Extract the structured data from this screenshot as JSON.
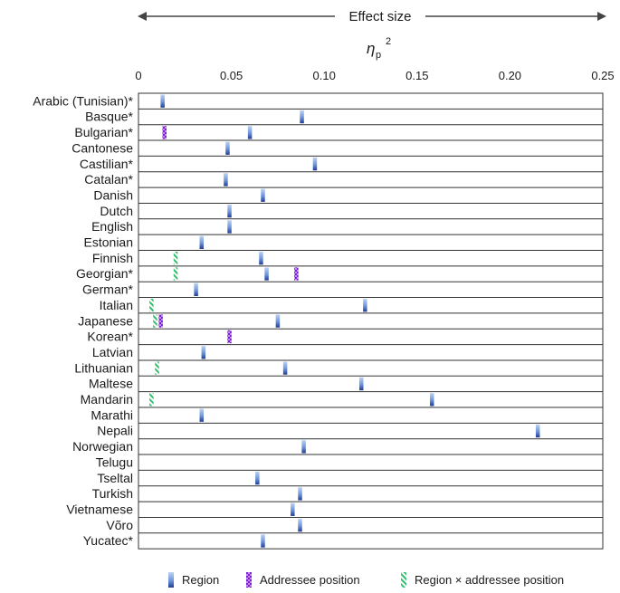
{
  "chart_data": {
    "type": "table",
    "header_arrow_label": "Effect size",
    "axis_symbol": "η",
    "axis_symbol_subscript": "p",
    "axis_symbol_superscript": "2",
    "xlim": [
      0,
      0.25
    ],
    "ticks": [
      "0",
      "0.05",
      "0.10",
      "0.15",
      "0.20",
      "0.25"
    ],
    "tick_values": [
      0,
      0.05,
      0.1,
      0.15,
      0.2,
      0.25
    ],
    "legend": [
      {
        "key": "region",
        "label": "Region"
      },
      {
        "key": "addressee",
        "label": "Addressee position"
      },
      {
        "key": "interaction",
        "label": "Region × addressee position"
      }
    ],
    "colors": {
      "region_light": "#a9c4ec",
      "region_dark": "#1f3c96",
      "addressee": "#9b3fe0",
      "interaction": "#2fbf6a",
      "row_line": "#333333"
    },
    "rows": [
      {
        "language": "Arabic (Tunisian)*",
        "region": 0.013,
        "addressee": null,
        "interaction": null
      },
      {
        "language": "Basque*",
        "region": 0.088,
        "addressee": null,
        "interaction": null
      },
      {
        "language": "Bulgarian*",
        "region": 0.06,
        "addressee": 0.014,
        "interaction": null
      },
      {
        "language": "Cantonese",
        "region": 0.048,
        "addressee": null,
        "interaction": null
      },
      {
        "language": "Castilian*",
        "region": 0.095,
        "addressee": null,
        "interaction": null
      },
      {
        "language": "Catalan*",
        "region": 0.047,
        "addressee": null,
        "interaction": null
      },
      {
        "language": "Danish",
        "region": 0.067,
        "addressee": null,
        "interaction": null
      },
      {
        "language": "Dutch",
        "region": 0.049,
        "addressee": null,
        "interaction": null
      },
      {
        "language": "English",
        "region": 0.049,
        "addressee": null,
        "interaction": null
      },
      {
        "language": "Estonian",
        "region": 0.034,
        "addressee": null,
        "interaction": null
      },
      {
        "language": "Finnish",
        "region": 0.066,
        "addressee": null,
        "interaction": 0.02
      },
      {
        "language": "Georgian*",
        "region": 0.069,
        "addressee": 0.085,
        "interaction": 0.02
      },
      {
        "language": "German*",
        "region": 0.031,
        "addressee": null,
        "interaction": null
      },
      {
        "language": "Italian",
        "region": 0.122,
        "addressee": null,
        "interaction": 0.007
      },
      {
        "language": "Japanese",
        "region": 0.075,
        "addressee": 0.012,
        "interaction": 0.009
      },
      {
        "language": "Korean*",
        "region": null,
        "addressee": 0.049,
        "interaction": null
      },
      {
        "language": "Latvian",
        "region": 0.035,
        "addressee": null,
        "interaction": null
      },
      {
        "language": "Lithuanian",
        "region": 0.079,
        "addressee": null,
        "interaction": 0.01
      },
      {
        "language": "Maltese",
        "region": 0.12,
        "addressee": null,
        "interaction": null
      },
      {
        "language": "Mandarin",
        "region": 0.158,
        "addressee": null,
        "interaction": 0.007
      },
      {
        "language": "Marathi",
        "region": 0.034,
        "addressee": null,
        "interaction": null
      },
      {
        "language": "Nepali",
        "region": 0.215,
        "addressee": null,
        "interaction": null
      },
      {
        "language": "Norwegian",
        "region": 0.089,
        "addressee": null,
        "interaction": null
      },
      {
        "language": "Telugu",
        "region": null,
        "addressee": null,
        "interaction": null
      },
      {
        "language": "Tseltal",
        "region": 0.064,
        "addressee": null,
        "interaction": null
      },
      {
        "language": "Turkish",
        "region": 0.087,
        "addressee": null,
        "interaction": null
      },
      {
        "language": "Vietnamese",
        "region": 0.083,
        "addressee": null,
        "interaction": null
      },
      {
        "language": "Võro",
        "region": 0.087,
        "addressee": null,
        "interaction": null
      },
      {
        "language": "Yucatec*",
        "region": 0.067,
        "addressee": null,
        "interaction": null
      }
    ]
  }
}
